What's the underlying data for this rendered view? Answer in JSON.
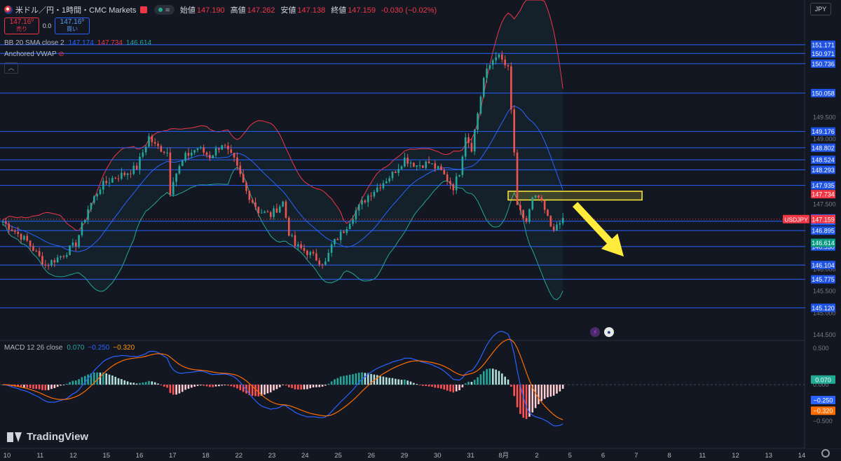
{
  "header": {
    "title": "米ドル／円・1時間・CMC Markets",
    "status_pill": "≋",
    "ohlc": [
      {
        "k": "始値",
        "v": "147.190"
      },
      {
        "k": "高値",
        "v": "147.262"
      },
      {
        "k": "安値",
        "v": "147.138"
      },
      {
        "k": "終値",
        "v": "147.159"
      },
      {
        "k": "",
        "v": "-0.030 (−0.02%)"
      }
    ],
    "currency": "JPY"
  },
  "trade": {
    "sell_price": "147.16⁰",
    "sell_label": "売り",
    "spread": "0.0",
    "buy_price": "147.16⁰",
    "buy_label": "買い"
  },
  "indicators": {
    "bb": {
      "name": "BB 20 SMA close 2",
      "basis": "147.174",
      "upper": "147.734",
      "lower": "146.614"
    },
    "vwap": {
      "name": "Anchored VWAP"
    },
    "macd": {
      "name": "MACD 12 26 close",
      "hist": "0.070",
      "macd": "−0.250",
      "signal": "−0.320"
    }
  },
  "branding": {
    "logo_text": "TradingView"
  },
  "colors": {
    "background": "#131722",
    "up": "#26a69a",
    "down": "#ef5350",
    "bb_basis": "#2962ff",
    "bb_upper": "#f23645",
    "bb_lower": "#26a69a",
    "hline": "#2962ff",
    "macd_line": "#2962ff",
    "signal_line": "#ff6d00",
    "highlight": "#ffeb3b"
  },
  "chart_data": {
    "type": "candlestick",
    "symbol": "USDJPY",
    "timeframe": "1時間",
    "x_tick_labels": [
      "10",
      "11",
      "12",
      "15",
      "16",
      "17",
      "18",
      "22",
      "23",
      "24",
      "25",
      "26",
      "29",
      "30",
      "31",
      "8月",
      "2",
      "5",
      "6",
      "7",
      "8",
      "11",
      "12",
      "13",
      "14"
    ],
    "y_tick_labels": [
      "149.500",
      "149.000",
      "147.500",
      "146.000",
      "145.500",
      "145.000",
      "144.500"
    ],
    "ylim": [
      144.4,
      152.2
    ],
    "current_price": {
      "label": "USDJPY",
      "value": "147.159"
    },
    "bb_labels": {
      "upper": "147.734",
      "basis": "147.174",
      "lower": "146.614"
    },
    "horizontal_levels": [
      "151.171",
      "150.971",
      "150.736",
      "150.058",
      "149.176",
      "148.802",
      "148.524",
      "148.293",
      "147.935",
      "147.112",
      "146.895",
      "146.530",
      "146.104",
      "145.775",
      "145.120"
    ],
    "close_path": [
      [
        0,
        147.1
      ],
      [
        8,
        146.65
      ],
      [
        14,
        146.1
      ],
      [
        20,
        146.35
      ],
      [
        24,
        146.6
      ],
      [
        28,
        147.4
      ],
      [
        32,
        147.9
      ],
      [
        36,
        148.1
      ],
      [
        40,
        148.2
      ],
      [
        44,
        148.35
      ],
      [
        46,
        148.7
      ],
      [
        48,
        149.05
      ],
      [
        50,
        148.85
      ],
      [
        54,
        148.7
      ],
      [
        55,
        147.8
      ],
      [
        56,
        148.1
      ],
      [
        60,
        148.6
      ],
      [
        64,
        148.8
      ],
      [
        68,
        148.6
      ],
      [
        72,
        148.9
      ],
      [
        76,
        148.5
      ],
      [
        80,
        147.8
      ],
      [
        84,
        147.35
      ],
      [
        88,
        147.25
      ],
      [
        92,
        147.55
      ],
      [
        94,
        146.85
      ],
      [
        96,
        146.55
      ],
      [
        100,
        146.4
      ],
      [
        104,
        146.2
      ],
      [
        106,
        146.15
      ],
      [
        108,
        146.55
      ],
      [
        112,
        146.9
      ],
      [
        116,
        147.35
      ],
      [
        120,
        147.7
      ],
      [
        124,
        147.95
      ],
      [
        128,
        148.2
      ],
      [
        132,
        148.55
      ],
      [
        136,
        148.4
      ],
      [
        140,
        148.45
      ],
      [
        144,
        148.25
      ],
      [
        148,
        147.9
      ],
      [
        150,
        148.25
      ],
      [
        152,
        149.1
      ],
      [
        154,
        148.8
      ],
      [
        156,
        149.6
      ],
      [
        158,
        150.4
      ],
      [
        160,
        150.7
      ],
      [
        162,
        150.95
      ],
      [
        164,
        150.8
      ],
      [
        166,
        150.6
      ],
      [
        168,
        148.7
      ],
      [
        169,
        147.4
      ],
      [
        172,
        147.1
      ],
      [
        174,
        147.6
      ],
      [
        176,
        147.65
      ],
      [
        178,
        147.35
      ],
      [
        180,
        147.0
      ],
      [
        182,
        146.95
      ],
      [
        184,
        147.16
      ]
    ],
    "macd": {
      "ylim": [
        -0.8,
        0.55
      ],
      "y_tick_labels": [
        "0.500",
        "0.000",
        "−0.500"
      ],
      "macd_label": "−0.250",
      "signal_label": "−0.320",
      "hist_label": "0.070"
    },
    "annotations": {
      "resistance_zone": {
        "y_low": 147.6,
        "y_high": 147.8,
        "x_start": 166,
        "x_end": 210
      },
      "arrow": {
        "from": [
          188,
          147.5
        ],
        "to": [
          204,
          146.3
        ]
      }
    }
  }
}
